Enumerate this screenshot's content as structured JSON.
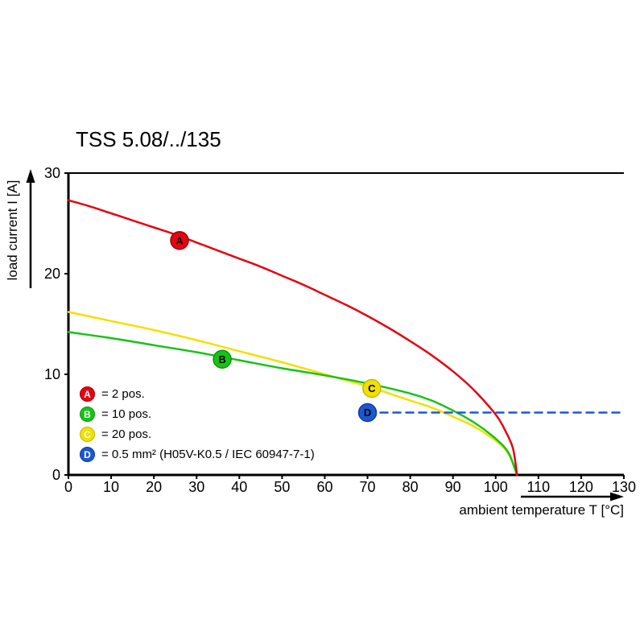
{
  "title": "TSS 5.08/../135",
  "chart_data": {
    "type": "line",
    "title": "TSS 5.08/../135",
    "xlabel": "ambient temperature T [°C]",
    "ylabel": "load current I [A]",
    "xlim": [
      0,
      130
    ],
    "ylim": [
      0,
      30
    ],
    "xticks": [
      0,
      10,
      20,
      30,
      40,
      50,
      60,
      70,
      80,
      90,
      100,
      110,
      120,
      130
    ],
    "yticks": [
      0,
      10,
      20,
      30
    ],
    "grid": false,
    "legend_position": "lower-left-inside",
    "series": [
      {
        "id": "C",
        "name": "20 pos.",
        "color": "#f2e000",
        "edge": "#c6b600",
        "style": "solid",
        "points": [
          [
            0,
            16.2
          ],
          [
            10,
            15.3
          ],
          [
            20,
            14.4
          ],
          [
            30,
            13.4
          ],
          [
            40,
            12.3
          ],
          [
            50,
            11.2
          ],
          [
            60,
            10.0
          ],
          [
            70,
            8.8
          ],
          [
            80,
            7.4
          ],
          [
            85,
            6.7
          ],
          [
            90,
            5.8
          ],
          [
            95,
            4.8
          ],
          [
            100,
            3.4
          ],
          [
            103,
            2.1
          ],
          [
            105,
            0
          ]
        ]
      },
      {
        "id": "B",
        "name": "10 pos.",
        "color": "#16c316",
        "edge": "#0d940d",
        "style": "solid",
        "points": [
          [
            0,
            14.2
          ],
          [
            10,
            13.6
          ],
          [
            20,
            12.9
          ],
          [
            30,
            12.2
          ],
          [
            40,
            11.4
          ],
          [
            50,
            10.6
          ],
          [
            60,
            9.9
          ],
          [
            70,
            9.1
          ],
          [
            80,
            8.1
          ],
          [
            85,
            7.4
          ],
          [
            90,
            6.4
          ],
          [
            95,
            5.2
          ],
          [
            100,
            3.6
          ],
          [
            103,
            2.2
          ],
          [
            105,
            0
          ]
        ]
      },
      {
        "id": "A",
        "name": "2 pos.",
        "color": "#e30613",
        "edge": "#a3000b",
        "style": "solid",
        "points": [
          [
            0,
            27.3
          ],
          [
            5,
            26.7
          ],
          [
            10,
            26.0
          ],
          [
            15,
            25.3
          ],
          [
            20,
            24.6
          ],
          [
            25,
            23.9
          ],
          [
            30,
            23.1
          ],
          [
            35,
            22.3
          ],
          [
            40,
            21.5
          ],
          [
            45,
            20.7
          ],
          [
            50,
            19.8
          ],
          [
            55,
            18.9
          ],
          [
            60,
            17.9
          ],
          [
            65,
            16.9
          ],
          [
            70,
            15.8
          ],
          [
            75,
            14.6
          ],
          [
            80,
            13.3
          ],
          [
            85,
            11.9
          ],
          [
            90,
            10.3
          ],
          [
            95,
            8.4
          ],
          [
            100,
            6.0
          ],
          [
            102,
            4.6
          ],
          [
            104,
            2.7
          ],
          [
            105,
            0
          ]
        ]
      },
      {
        "id": "D",
        "name": "0.5 mm² (H05V-K0.5 / IEC 60947-7-1)",
        "color": "#1d57d2",
        "edge": "#0c3da8",
        "style": "dashed",
        "points": [
          [
            70,
            6.2
          ],
          [
            130,
            6.2
          ]
        ]
      }
    ],
    "markers": [
      {
        "series": "A",
        "letter": "A",
        "x": 26,
        "y": 23.3
      },
      {
        "series": "B",
        "letter": "B",
        "x": 36,
        "y": 11.5
      },
      {
        "series": "C",
        "letter": "C",
        "x": 71,
        "y": 8.6
      },
      {
        "series": "D",
        "letter": "D",
        "x": 70,
        "y": 6.2
      }
    ],
    "legend": [
      {
        "series": "A",
        "letter": "A",
        "label": "= 2 pos."
      },
      {
        "series": "B",
        "letter": "B",
        "label": "= 10 pos."
      },
      {
        "series": "C",
        "letter": "C",
        "label": "= 20 pos."
      },
      {
        "series": "D",
        "letter": "D",
        "label": "= 0.5 mm² (H05V-K0.5 / IEC 60947-7-1)"
      }
    ]
  }
}
